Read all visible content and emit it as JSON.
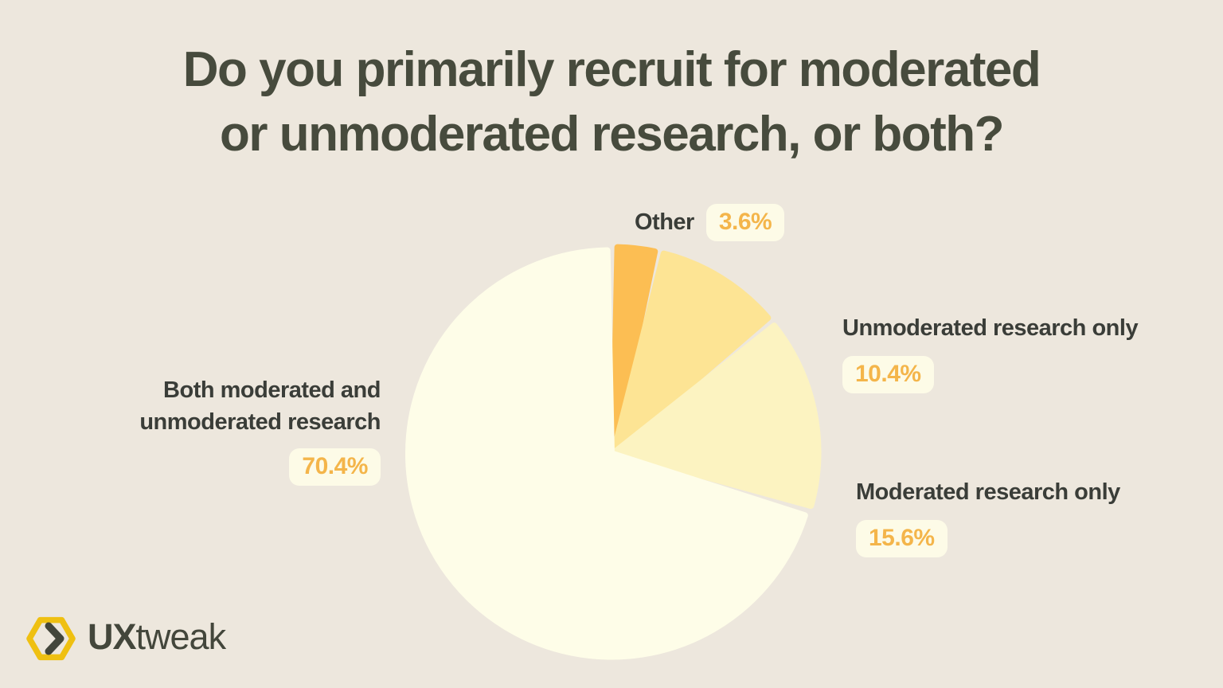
{
  "title": {
    "line1": "Do you primarily recruit for moderated",
    "line2": "or unmoderated research, or both?"
  },
  "colors": {
    "background": "#EDE7DD",
    "title_color": "#474B3D",
    "label_color": "#3A3D38",
    "percent_color": "#F4B54A",
    "badge_bg": "#FDFBE7",
    "logo_yellow": "#EFC011",
    "logo_text": "#43463B"
  },
  "chart_data": {
    "type": "pie",
    "title": "Do you primarily recruit for moderated or unmoderated research, or both?",
    "start_angle_deg": 0,
    "direction": "clockwise",
    "slices": [
      {
        "id": "other",
        "label": "Other",
        "value": 3.6,
        "color": "#FCBE53"
      },
      {
        "id": "unmoderated",
        "label": "Unmoderated research only",
        "value": 10.4,
        "color": "#FDE494"
      },
      {
        "id": "moderated",
        "label": "Moderated research only",
        "value": 15.6,
        "color": "#FCF3C1"
      },
      {
        "id": "both",
        "label": "Both moderated and unmoderated research",
        "value": 70.4,
        "color": "#FEFDE8"
      }
    ]
  },
  "callouts": {
    "other": {
      "name": "Other",
      "pct": "3.6%"
    },
    "unmoderated": {
      "name": "Unmoderated research only",
      "pct": "10.4%"
    },
    "moderated": {
      "name": "Moderated research only",
      "pct": "15.6%"
    },
    "both": {
      "name_line1": "Both moderated and",
      "name_line2": "unmoderated research",
      "pct": "70.4%"
    }
  },
  "logo": {
    "brand_bold": "UX",
    "brand_light": "tweak"
  }
}
